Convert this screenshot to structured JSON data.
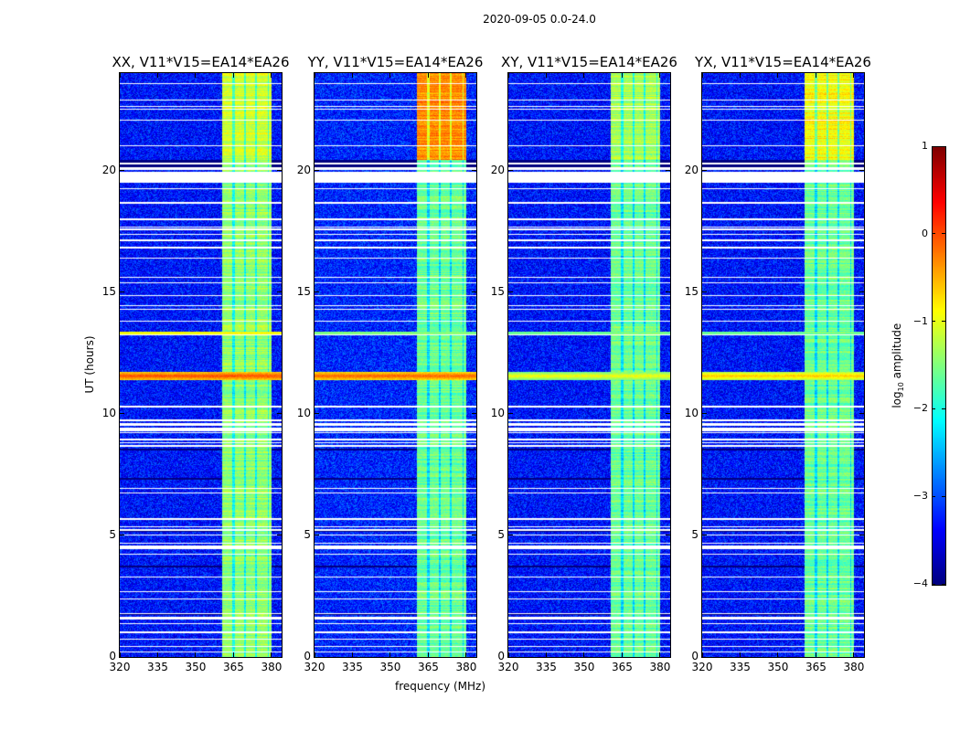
{
  "chart_data": {
    "type": "heatmap",
    "suptitle": "2020-09-05 0.0-24.0",
    "xlabel": "frequency (MHz)",
    "ylabel": "UT (hours)",
    "xlim": [
      320,
      384
    ],
    "ylim": [
      0,
      24
    ],
    "xticks": [
      320,
      335,
      350,
      365,
      380
    ],
    "yticks": [
      0,
      5,
      10,
      15,
      20
    ],
    "colormap": "jet",
    "colorbar": {
      "label_prefix": "log",
      "label_sub": "10",
      "label_suffix": " amplitude",
      "range": [
        -4,
        1
      ],
      "ticks": [
        1,
        0,
        -1,
        -2,
        -3,
        -4
      ]
    },
    "panels": [
      {
        "title": "XX, V11*V15=EA14*EA26",
        "background": -3.3,
        "band_level": -1.4,
        "band_level_late": -1.1,
        "rfi_11_5h": 0.0,
        "rfi_13_3h": -0.9
      },
      {
        "title": "YY, V11*V15=EA14*EA26",
        "background": -3.2,
        "band_level": -1.6,
        "band_level_late": -0.3,
        "rfi_11_5h": -0.1,
        "rfi_13_3h": -1.5
      },
      {
        "title": "XY, V11*V15=EA14*EA26",
        "background": -3.3,
        "band_level": -1.6,
        "band_level_late": -1.3,
        "rfi_11_5h": -0.9,
        "rfi_13_3h": -1.6
      },
      {
        "title": "YX, V11*V15=EA14*EA26",
        "background": -3.3,
        "band_level": -1.6,
        "band_level_late": -0.9,
        "rfi_11_5h": -0.6,
        "rfi_13_3h": -1.6
      }
    ],
    "rfi_band_mhz": [
      360.5,
      380
    ],
    "flagged_hours": [
      [
        19.5,
        19.95
      ],
      [
        4.45,
        4.58
      ],
      [
        1.55,
        1.66
      ],
      [
        9.28,
        9.38
      ],
      [
        9.5,
        9.56
      ],
      [
        17.55,
        17.62
      ],
      [
        0.4,
        0.45
      ]
    ],
    "dark_hours": [
      [
        20.15,
        20.45
      ],
      [
        1.74,
        1.8
      ],
      [
        3.68,
        3.75
      ],
      [
        5.15,
        5.22
      ],
      [
        7.3,
        7.36
      ],
      [
        8.5,
        8.55
      ]
    ]
  }
}
